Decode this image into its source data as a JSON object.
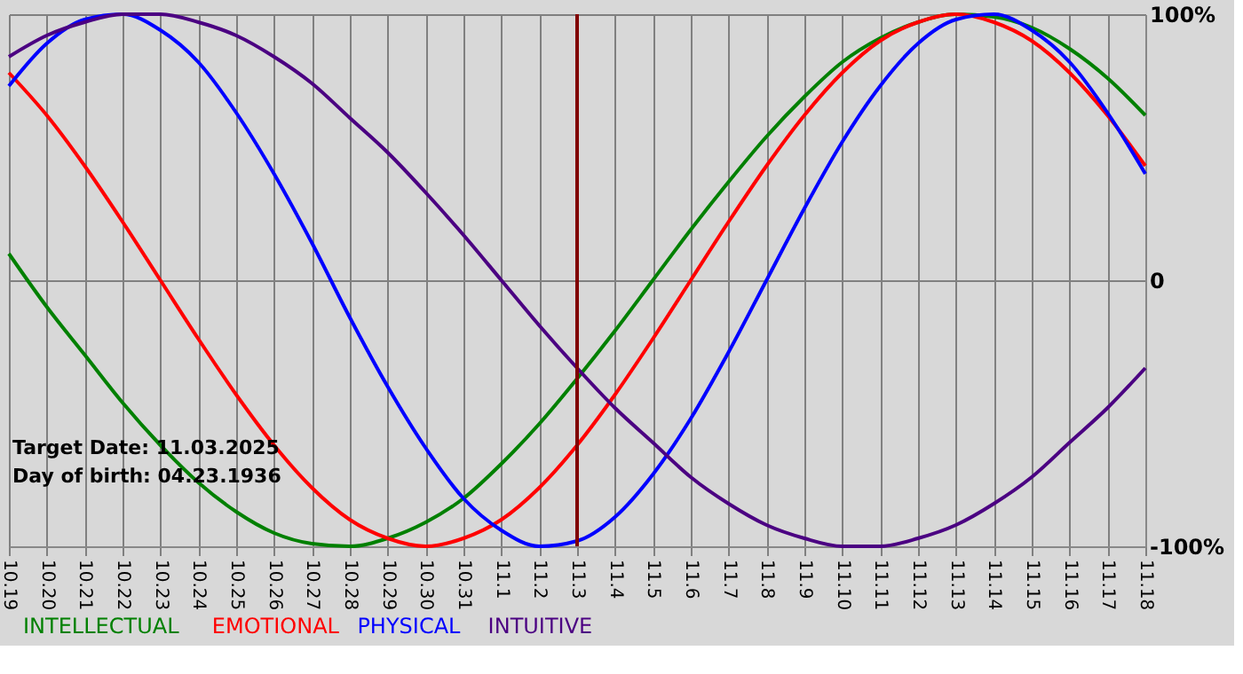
{
  "chart_data": {
    "type": "line",
    "categories": [
      "10.19",
      "10.20",
      "10.21",
      "10.22",
      "10.23",
      "10.24",
      "10.25",
      "10.26",
      "10.27",
      "10.28",
      "10.29",
      "10.30",
      "10.31",
      "11.1",
      "11.2",
      "11.3",
      "11.4",
      "11.5",
      "11.6",
      "11.7",
      "11.8",
      "11.9",
      "11.10",
      "11.11",
      "11.12",
      "11.13",
      "11.14",
      "11.15",
      "11.16",
      "11.17",
      "11.18"
    ],
    "series": [
      {
        "name": "INTELLECTUAL",
        "color": "#008000",
        "values": [
          10,
          -10,
          -28,
          -46,
          -62,
          -76,
          -87,
          -95,
          -99,
          -100,
          -97,
          -91,
          -82,
          -69,
          -54,
          -37,
          -19,
          0,
          19,
          37,
          54,
          69,
          82,
          91,
          97,
          100,
          99,
          95,
          87,
          76,
          62
        ]
      },
      {
        "name": "EMOTIONAL",
        "color": "#ff0000",
        "values": [
          78,
          62,
          43,
          22,
          0,
          -22,
          -43,
          -62,
          -78,
          -90,
          -97,
          -100,
          -97,
          -90,
          -78,
          -62,
          -43,
          -22,
          0,
          22,
          43,
          62,
          78,
          90,
          97,
          100,
          97,
          90,
          78,
          62,
          43
        ]
      },
      {
        "name": "PHYSICAL",
        "color": "#0000ff",
        "values": [
          73,
          89,
          98,
          100,
          94,
          82,
          63,
          40,
          14,
          -14,
          -40,
          -63,
          -82,
          -94,
          -100,
          -98,
          -89,
          -73,
          -52,
          -27,
          0,
          27,
          52,
          73,
          89,
          98,
          100,
          94,
          82,
          63,
          40
        ]
      },
      {
        "name": "INTUITIVE",
        "color": "#4b0082",
        "values": [
          84,
          92,
          97,
          100,
          100,
          97,
          92,
          84,
          74,
          61,
          48,
          33,
          17,
          0,
          -17,
          -33,
          -48,
          -61,
          -74,
          -84,
          -92,
          -97,
          -100,
          -100,
          -97,
          -92,
          -84,
          -74,
          -61,
          -48,
          -33
        ]
      }
    ],
    "ylim": [
      -100,
      100
    ],
    "yticks": [
      {
        "value": -100,
        "label": "-100%"
      },
      0,
      {
        "value": 100,
        "label": "100%"
      }
    ],
    "ref_lines": [
      {
        "axis": "x",
        "value": "11.3",
        "color": "#800000"
      }
    ],
    "annotations": [
      "Target Date: 11.03.2025",
      "Day of birth: 04.23.1936"
    ],
    "grid": true,
    "legend": "bottom",
    "marker": "none",
    "line_style": "solid"
  }
}
